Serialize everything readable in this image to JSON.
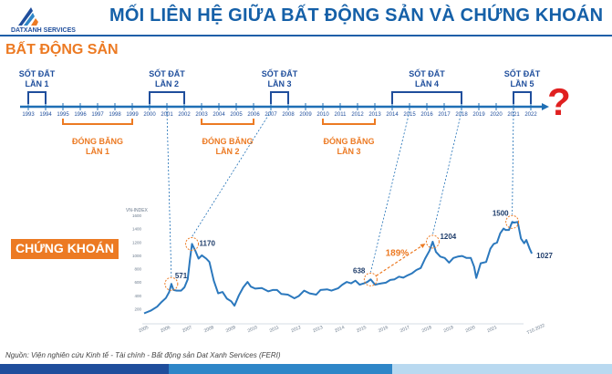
{
  "brand": {
    "name": "DATXANH SERVICES"
  },
  "title": "MỐI LIÊN HỆ GIỮA BẤT ĐỘNG SẢN VÀ CHỨNG KHOÁN",
  "section_real_estate": "BẤT ĐỘNG SẢN",
  "section_stocks": "CHỨNG KHOÁN",
  "timeline": {
    "years": [
      "1993",
      "1994",
      "1995",
      "1996",
      "1997",
      "1998",
      "1999",
      "2000",
      "2001",
      "2002",
      "2003",
      "2004",
      "2005",
      "2006",
      "2007",
      "2008",
      "2009",
      "2010",
      "2011",
      "2012",
      "2013",
      "2014",
      "2015",
      "2016",
      "2017",
      "2018",
      "2019",
      "2020",
      "2021",
      "2022"
    ],
    "fevers": [
      {
        "line1": "SỐT ĐẤT",
        "line2": "LẦN 1",
        "from": "1993",
        "to": "1994"
      },
      {
        "line1": "SỐT ĐẤT",
        "line2": "LẦN 2",
        "from": "2000",
        "to": "2002"
      },
      {
        "line1": "SỐT ĐẤT",
        "line2": "LẦN 3",
        "from": "2007",
        "to": "2008"
      },
      {
        "line1": "SỐT ĐẤT",
        "line2": "LẦN 4",
        "from": "2014",
        "to": "2018"
      },
      {
        "line1": "SỐT ĐẤT",
        "line2": "LẦN 5",
        "from": "2021",
        "to": "2022"
      }
    ],
    "freezes": [
      {
        "line1": "ĐÓNG BĂNG",
        "line2": "LẦN 1",
        "from": "1995",
        "to": "1999"
      },
      {
        "line1": "ĐÓNG BĂNG",
        "line2": "LẦN 2",
        "from": "2003",
        "to": "2006"
      },
      {
        "line1": "ĐÓNG BĂNG",
        "line2": "LẦN 3",
        "from": "2010",
        "to": "2013"
      }
    ],
    "question": "?"
  },
  "chart_data": {
    "type": "line",
    "ylabel": "VN-INDEX",
    "ylim": [
      0,
      1600
    ],
    "yticks": [
      200,
      400,
      600,
      800,
      1000,
      1200,
      1400,
      1600
    ],
    "xticks": [
      "2005",
      "2006",
      "2007",
      "2008",
      "2009",
      "2010",
      "2011",
      "2012",
      "2013",
      "2014",
      "2015",
      "2016",
      "2017",
      "2018",
      "2019",
      "2020",
      "2021",
      "T10.2022"
    ],
    "series": [
      {
        "values": [
          [
            2005.0,
            130
          ],
          [
            2005.3,
            170
          ],
          [
            2005.6,
            230
          ],
          [
            2005.8,
            300
          ],
          [
            2006.0,
            360
          ],
          [
            2006.15,
            450
          ],
          [
            2006.25,
            571
          ],
          [
            2006.35,
            480
          ],
          [
            2006.5,
            470
          ],
          [
            2006.7,
            470
          ],
          [
            2006.85,
            520
          ],
          [
            2007.0,
            640
          ],
          [
            2007.1,
            930
          ],
          [
            2007.2,
            1170
          ],
          [
            2007.35,
            1070
          ],
          [
            2007.5,
            950
          ],
          [
            2007.65,
            1000
          ],
          [
            2007.85,
            950
          ],
          [
            2008.0,
            900
          ],
          [
            2008.2,
            620
          ],
          [
            2008.4,
            430
          ],
          [
            2008.6,
            450
          ],
          [
            2008.8,
            350
          ],
          [
            2009.0,
            310
          ],
          [
            2009.15,
            245
          ],
          [
            2009.35,
            400
          ],
          [
            2009.55,
            520
          ],
          [
            2009.75,
            600
          ],
          [
            2009.9,
            530
          ],
          [
            2010.1,
            500
          ],
          [
            2010.4,
            510
          ],
          [
            2010.7,
            460
          ],
          [
            2010.9,
            480
          ],
          [
            2011.1,
            480
          ],
          [
            2011.3,
            420
          ],
          [
            2011.6,
            410
          ],
          [
            2011.9,
            355
          ],
          [
            2012.1,
            390
          ],
          [
            2012.35,
            470
          ],
          [
            2012.6,
            430
          ],
          [
            2012.9,
            410
          ],
          [
            2013.1,
            480
          ],
          [
            2013.4,
            490
          ],
          [
            2013.6,
            470
          ],
          [
            2013.9,
            505
          ],
          [
            2014.1,
            560
          ],
          [
            2014.3,
            600
          ],
          [
            2014.5,
            580
          ],
          [
            2014.7,
            620
          ],
          [
            2014.9,
            560
          ],
          [
            2015.1,
            580
          ],
          [
            2015.25,
            600
          ],
          [
            2015.4,
            638
          ],
          [
            2015.6,
            560
          ],
          [
            2015.75,
            570
          ],
          [
            2015.9,
            580
          ],
          [
            2016.1,
            590
          ],
          [
            2016.3,
            630
          ],
          [
            2016.5,
            640
          ],
          [
            2016.7,
            680
          ],
          [
            2016.9,
            665
          ],
          [
            2017.1,
            700
          ],
          [
            2017.3,
            730
          ],
          [
            2017.5,
            780
          ],
          [
            2017.7,
            810
          ],
          [
            2017.9,
            950
          ],
          [
            2018.1,
            1070
          ],
          [
            2018.25,
            1204
          ],
          [
            2018.4,
            1050
          ],
          [
            2018.6,
            980
          ],
          [
            2018.8,
            960
          ],
          [
            2019.0,
            890
          ],
          [
            2019.2,
            960
          ],
          [
            2019.4,
            980
          ],
          [
            2019.6,
            990
          ],
          [
            2019.8,
            960
          ],
          [
            2020.0,
            960
          ],
          [
            2020.15,
            830
          ],
          [
            2020.25,
            660
          ],
          [
            2020.45,
            880
          ],
          [
            2020.7,
            900
          ],
          [
            2020.9,
            1100
          ],
          [
            2021.05,
            1170
          ],
          [
            2021.2,
            1190
          ],
          [
            2021.35,
            1330
          ],
          [
            2021.5,
            1400
          ],
          [
            2021.6,
            1380
          ],
          [
            2021.75,
            1380
          ],
          [
            2021.9,
            1500
          ],
          [
            2022.0,
            1490
          ],
          [
            2022.15,
            1500
          ],
          [
            2022.3,
            1250
          ],
          [
            2022.45,
            1180
          ],
          [
            2022.55,
            1230
          ],
          [
            2022.7,
            1100
          ],
          [
            2022.8,
            1027
          ]
        ]
      }
    ],
    "peaks": [
      {
        "label": "571",
        "x": 2006.25,
        "y": 571
      },
      {
        "label": "1170",
        "x": 2007.2,
        "y": 1170
      },
      {
        "label": "638",
        "x": 2015.4,
        "y": 638
      },
      {
        "label": "1204",
        "x": 2018.25,
        "y": 1204
      },
      {
        "label": "1500",
        "x": 2021.9,
        "y": 1500
      },
      {
        "label": "1027",
        "x": 2022.8,
        "y": 1027
      }
    ],
    "growth_annotation": {
      "label": "189%",
      "from": 2015.4,
      "to": 2018.25
    }
  },
  "source": "Nguồn: Viện nghiên cứu Kinh tế - Tài chính - Bất động sản Dat Xanh Services (FERI)",
  "colors": {
    "navy": "#1f4e9c",
    "blue": "#1f6fb5",
    "orange": "#ec7a23",
    "red": "#e02020",
    "line": "#2b78bd",
    "footer": [
      "#1f4e9c",
      "#2e86c8",
      "#b9d9f0"
    ]
  }
}
